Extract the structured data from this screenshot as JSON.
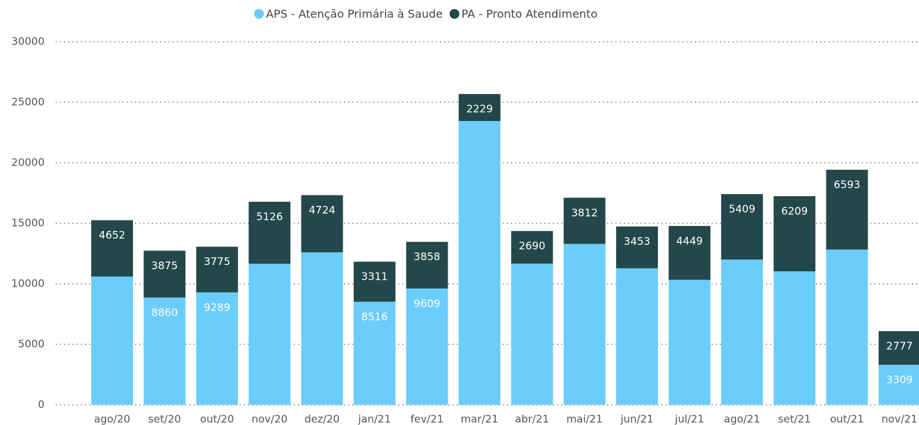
{
  "chart_data": {
    "type": "stacked_bar",
    "categories": [
      "ago/20",
      "set/20",
      "out/20",
      "nov/20",
      "dez/20",
      "jan/21",
      "fev/21",
      "mar/21",
      "abr/21",
      "mai/21",
      "jun/21",
      "jul/21",
      "ago/21",
      "set/21",
      "out/21",
      "nov/21"
    ],
    "series": [
      {
        "name": "APS - Atenção Primária à Saude",
        "color": "#6ACDFB",
        "values": [
          10600,
          8860,
          9289,
          11650,
          12600,
          8516,
          9609,
          23450,
          11670,
          13300,
          11280,
          10330,
          12000,
          11030,
          12830,
          3309
        ],
        "value_labels": [
          null,
          "8860",
          "9289",
          null,
          null,
          "8516",
          "9609",
          null,
          null,
          null,
          null,
          null,
          null,
          null,
          null,
          "3309"
        ]
      },
      {
        "name": "PA - Pronto Atendimento",
        "color": "#23474A",
        "values": [
          4652,
          3875,
          3775,
          5126,
          4724,
          3311,
          3858,
          2229,
          2690,
          3812,
          3453,
          4449,
          5409,
          6209,
          6593,
          2777
        ]
      }
    ],
    "ylim": [
      0,
      30000
    ],
    "yticks": [
      0,
      5000,
      10000,
      15000,
      20000,
      25000,
      30000
    ],
    "grid": true
  }
}
